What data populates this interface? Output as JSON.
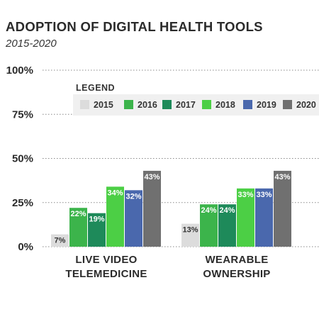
{
  "chart_data": {
    "type": "bar",
    "title": "ADOPTION OF DIGITAL HEALTH TOOLS",
    "subtitle": "2015-2020",
    "categories": [
      [
        "LIVE VIDEO",
        "TELEMEDICINE"
      ],
      [
        "WEARABLE",
        "OWNERSHIP"
      ]
    ],
    "series": [
      {
        "name": "2015",
        "color": "#dcdcdc",
        "values": [
          7,
          13
        ]
      },
      {
        "name": "2016",
        "color": "#3cb44b",
        "values": [
          22,
          24
        ]
      },
      {
        "name": "2017",
        "color": "#1e8a5a",
        "values": [
          19,
          24
        ]
      },
      {
        "name": "2018",
        "color": "#4ccf45",
        "values": [
          34,
          33
        ]
      },
      {
        "name": "2019",
        "color": "#4a68ad",
        "values": [
          32,
          33
        ]
      },
      {
        "name": "2020",
        "color": "#707070",
        "values": [
          43,
          43
        ]
      }
    ],
    "data_labels": [
      [
        "7%",
        "22%",
        "19%",
        "34%",
        "32%",
        "43%"
      ],
      [
        "13%",
        "24%",
        "24%",
        "33%",
        "33%",
        "43%"
      ]
    ],
    "yticks": [
      "0%",
      "25%",
      "50%",
      "75%",
      "100%"
    ],
    "ylim": [
      0,
      100
    ],
    "legend": {
      "title": "LEGEND",
      "placement": "top-right"
    },
    "grid": true
  }
}
